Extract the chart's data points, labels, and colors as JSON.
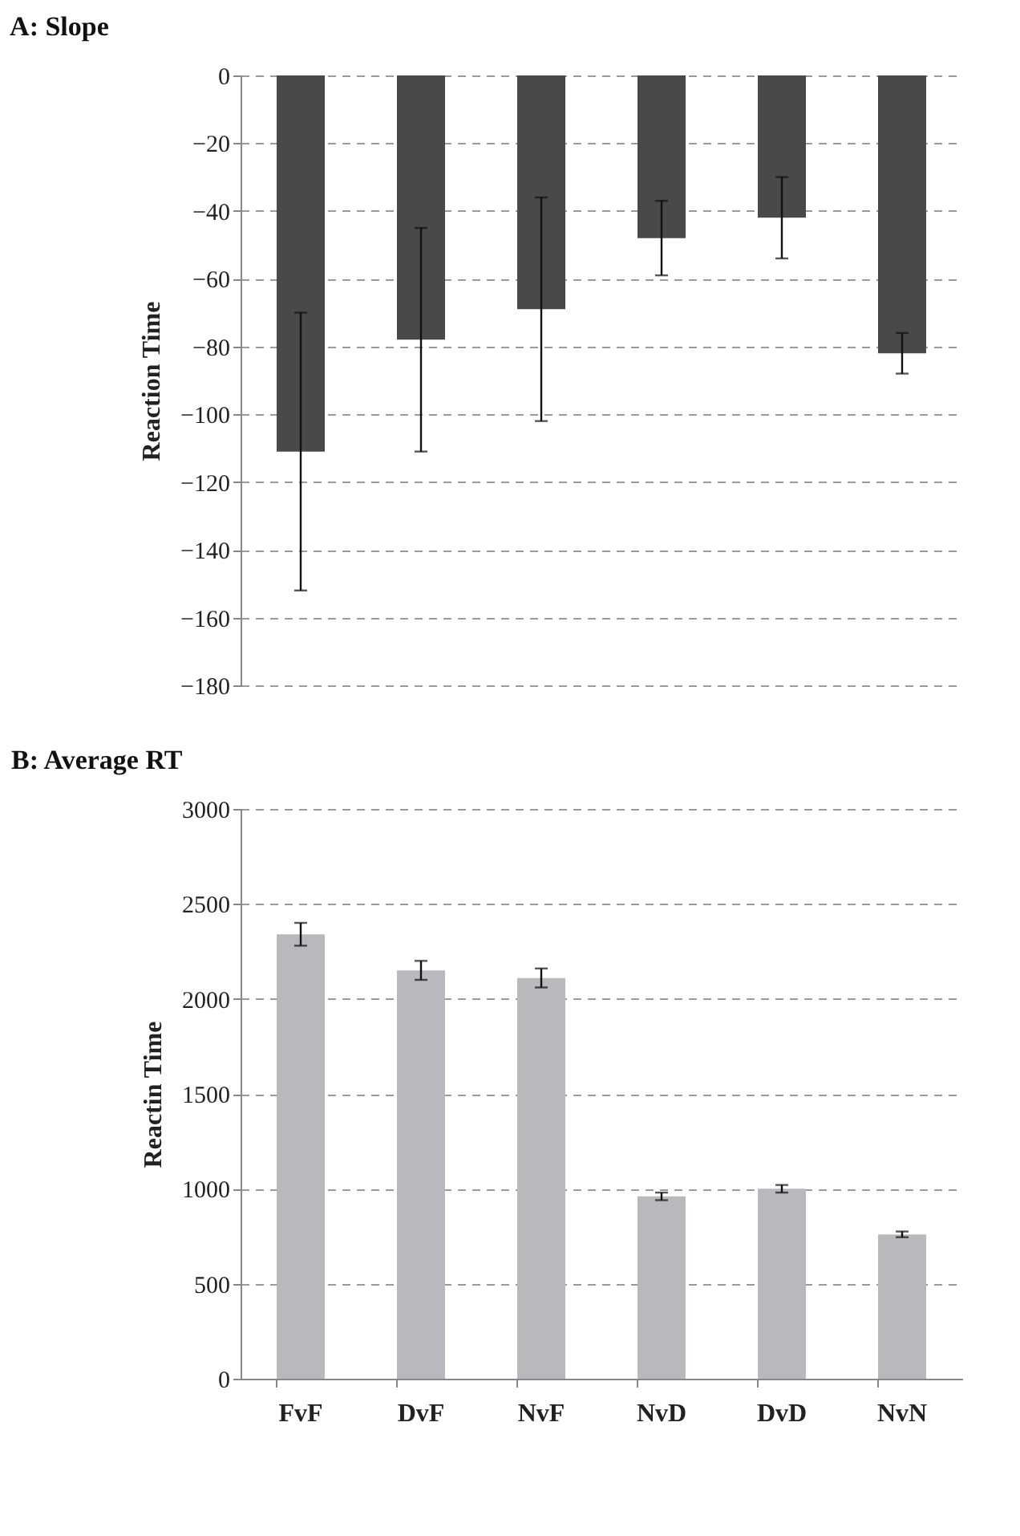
{
  "chart_data": [
    {
      "type": "bar",
      "title": "A: Slope",
      "ylabel": "Reaction Time",
      "categories": [
        null,
        null,
        null,
        null,
        null,
        null
      ],
      "values": [
        -111,
        -78,
        -69,
        -48,
        -42,
        -82
      ],
      "errors": [
        41,
        33,
        33,
        11,
        12,
        6
      ],
      "color": "#48494b",
      "ylim": [
        -180,
        0
      ],
      "yticks": [
        -180,
        -160,
        -140,
        -120,
        -100,
        -80,
        -60,
        -40,
        -20,
        0
      ],
      "grid": "y",
      "tick_labels": "y"
    },
    {
      "type": "bar",
      "title": "B: Average RT",
      "ylabel": "Reactin Time",
      "categories": [
        "FvF",
        "DvF",
        "NvF",
        "NvD",
        "DvD",
        "NvN"
      ],
      "values": [
        2340,
        2150,
        2110,
        960,
        1000,
        760
      ],
      "errors": [
        60,
        50,
        50,
        20,
        20,
        15
      ],
      "color": "#b8b9bc",
      "ylim": [
        0,
        3000
      ],
      "yticks": [
        0,
        500,
        1000,
        1500,
        2000,
        2500,
        3000
      ],
      "grid": "y"
    }
  ]
}
